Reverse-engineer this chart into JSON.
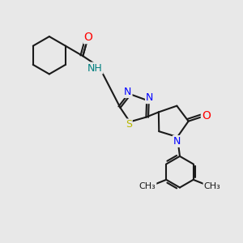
{
  "bg_color": "#e8e8e8",
  "bond_color": "#1a1a1a",
  "bond_width": 1.5,
  "atom_colors": {
    "N": "#0000ff",
    "O": "#ff0000",
    "S": "#b8b800",
    "C": "#1a1a1a",
    "NH": "#008080"
  },
  "font_size": 9
}
